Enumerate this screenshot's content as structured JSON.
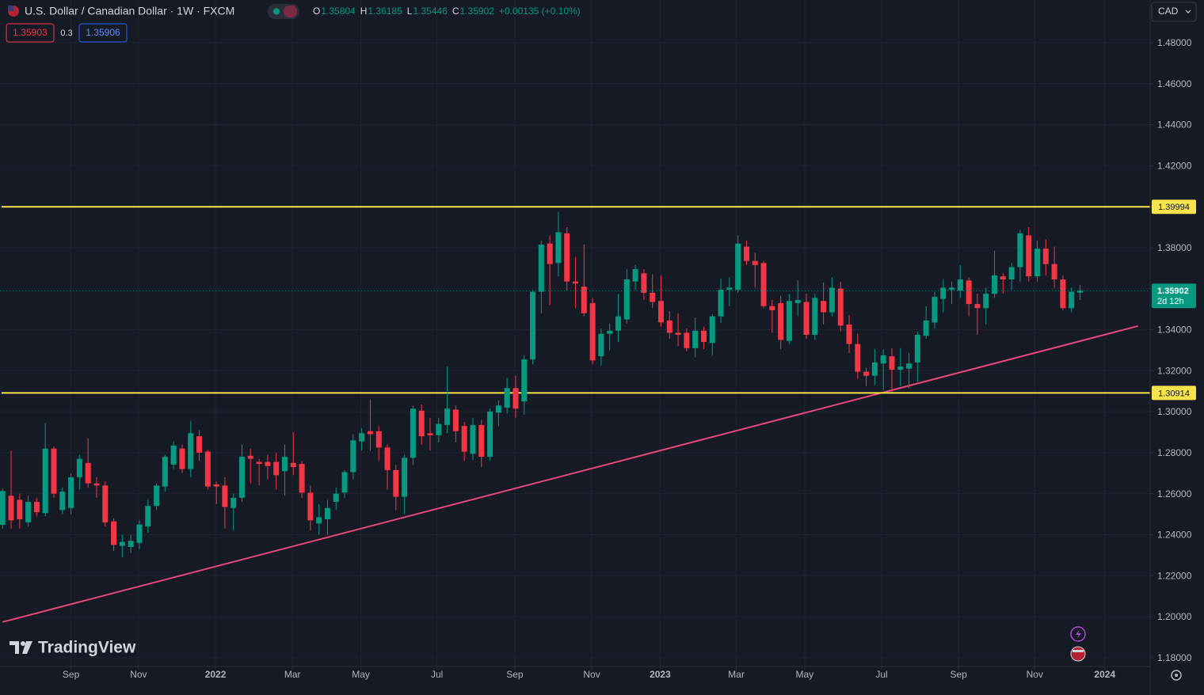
{
  "header": {
    "title": "U.S. Dollar / Canadian Dollar · 1W · FXCM",
    "ohlc": [
      {
        "key": "O",
        "value": "1.35804"
      },
      {
        "key": "H",
        "value": "1.36185"
      },
      {
        "key": "L",
        "value": "1.35446"
      },
      {
        "key": "C",
        "value": "1.35902"
      }
    ],
    "change": "+0.00135 (+0.10%)",
    "sell": "1.35903",
    "spread": "0.3",
    "buy": "1.35906",
    "currency": "CAD",
    "brand": "TradingView"
  },
  "chart_data": {
    "type": "candlestick",
    "open": [
      1.2448,
      1.259,
      1.257,
      1.246,
      1.256,
      1.2505,
      1.282,
      1.252,
      1.253,
      1.268,
      1.275,
      1.265,
      1.264,
      1.2465,
      1.2345,
      1.234,
      1.236,
      1.244,
      1.254,
      1.2635,
      1.2742,
      1.282,
      1.272,
      1.288,
      1.2805,
      1.2645,
      1.264,
      1.253,
      1.258,
      1.2785,
      1.2755,
      1.2755,
      1.2755,
      1.271,
      1.275,
      1.2745,
      1.2605,
      1.2455,
      1.2475,
      1.256,
      1.2605,
      1.2705,
      1.2855,
      1.2905,
      1.2905,
      1.2825,
      1.2715,
      1.2585,
      1.2775,
      1.3005,
      1.2895,
      1.2885,
      1.2935,
      1.301,
      1.293,
      1.2795,
      1.2935,
      1.278,
      1.2995,
      1.302,
      1.3115,
      1.305,
      1.3255,
      1.3585,
      1.382,
      1.3725,
      1.387,
      1.3635,
      1.361,
      1.353,
      1.327,
      1.338,
      1.3395,
      1.345,
      1.3635,
      1.3675,
      1.358,
      1.354,
      1.3445,
      1.3385,
      1.3385,
      1.331,
      1.3395,
      1.3335,
      1.3465,
      1.3595,
      1.3595,
      1.3805,
      1.3735,
      1.3725,
      1.3515,
      1.353,
      1.3345,
      1.353,
      1.3535,
      1.3375,
      1.354,
      1.3485,
      1.36,
      1.3425,
      1.333,
      1.3195,
      1.3175,
      1.3235,
      1.327,
      1.3205,
      1.321,
      1.324,
      1.337,
      1.3435,
      1.355,
      1.3595,
      1.359,
      1.364,
      1.3525,
      1.3505,
      1.3575,
      1.366,
      1.3645,
      1.3705,
      1.386,
      1.366,
      1.3795,
      1.372,
      1.3645,
      1.3505,
      1.35804
    ],
    "high": [
      1.2625,
      1.281,
      1.26,
      1.259,
      1.258,
      1.2945,
      1.283,
      1.263,
      1.27,
      1.279,
      1.287,
      1.268,
      1.266,
      1.248,
      1.24,
      1.24,
      1.247,
      1.257,
      1.265,
      1.279,
      1.2855,
      1.284,
      1.2955,
      1.291,
      1.2815,
      1.266,
      1.268,
      1.26,
      1.284,
      1.282,
      1.277,
      1.279,
      1.28,
      1.284,
      1.29,
      1.276,
      1.264,
      1.255,
      1.257,
      1.263,
      1.2715,
      1.289,
      1.292,
      1.306,
      1.293,
      1.284,
      1.274,
      1.279,
      1.303,
      1.3035,
      1.297,
      1.297,
      1.322,
      1.303,
      1.295,
      1.297,
      1.296,
      1.3015,
      1.3055,
      1.3165,
      1.3175,
      1.3275,
      1.3595,
      1.3835,
      1.386,
      1.3975,
      1.39,
      1.3755,
      1.3815,
      1.3555,
      1.3405,
      1.343,
      1.3575,
      1.3695,
      1.3715,
      1.3695,
      1.367,
      1.3665,
      1.349,
      1.348,
      1.3405,
      1.346,
      1.3415,
      1.3475,
      1.365,
      1.3655,
      1.386,
      1.3835,
      1.3775,
      1.3735,
      1.3545,
      1.3565,
      1.3575,
      1.364,
      1.3575,
      1.3575,
      1.363,
      1.3655,
      1.3635,
      1.347,
      1.338,
      1.3215,
      1.3305,
      1.3305,
      1.331,
      1.331,
      1.3285,
      1.339,
      1.3515,
      1.3585,
      1.3645,
      1.3635,
      1.3715,
      1.3655,
      1.3575,
      1.3605,
      1.3785,
      1.3675,
      1.3725,
      1.3885,
      1.39,
      1.3835,
      1.384,
      1.3805,
      1.3665,
      1.3605,
      1.36185
    ],
    "low": [
      1.243,
      1.243,
      1.243,
      1.244,
      1.249,
      1.249,
      1.258,
      1.25,
      1.25,
      1.262,
      1.263,
      1.258,
      1.244,
      1.232,
      1.229,
      1.231,
      1.233,
      1.241,
      1.252,
      1.261,
      1.272,
      1.27,
      1.268,
      1.276,
      1.262,
      1.255,
      1.243,
      1.242,
      1.256,
      1.265,
      1.264,
      1.267,
      1.262,
      1.259,
      1.269,
      1.258,
      1.242,
      1.24,
      1.24,
      1.252,
      1.258,
      1.267,
      1.281,
      1.281,
      1.276,
      1.262,
      1.252,
      1.25,
      1.274,
      1.284,
      1.281,
      1.285,
      1.2895,
      1.285,
      1.276,
      1.2765,
      1.273,
      1.276,
      1.293,
      1.299,
      1.297,
      1.2985,
      1.323,
      1.348,
      1.352,
      1.366,
      1.359,
      1.3505,
      1.3465,
      1.323,
      1.3225,
      1.33,
      1.334,
      1.343,
      1.3595,
      1.3545,
      1.3505,
      1.3415,
      1.3355,
      1.332,
      1.3295,
      1.3265,
      1.3305,
      1.3275,
      1.3435,
      1.3515,
      1.358,
      1.3715,
      1.3605,
      1.3505,
      1.3385,
      1.3305,
      1.333,
      1.3465,
      1.3355,
      1.335,
      1.3425,
      1.3465,
      1.339,
      1.3285,
      1.316,
      1.3125,
      1.313,
      1.3105,
      1.3095,
      1.3125,
      1.3115,
      1.3145,
      1.3355,
      1.3405,
      1.3485,
      1.3525,
      1.3555,
      1.3465,
      1.3375,
      1.3425,
      1.3555,
      1.3575,
      1.3595,
      1.3635,
      1.3635,
      1.3635,
      1.3665,
      1.3605,
      1.3495,
      1.3485,
      1.35446
    ],
    "close": [
      1.2613,
      1.247,
      1.2475,
      1.256,
      1.251,
      1.282,
      1.26,
      1.261,
      1.268,
      1.277,
      1.265,
      1.264,
      1.246,
      1.235,
      1.2365,
      1.237,
      1.245,
      1.254,
      1.264,
      1.278,
      1.2835,
      1.272,
      1.2895,
      1.28,
      1.2635,
      1.2635,
      1.2535,
      1.258,
      1.278,
      1.277,
      1.2745,
      1.2735,
      1.269,
      1.278,
      1.273,
      1.2605,
      1.247,
      1.2485,
      1.253,
      1.26,
      1.2705,
      1.286,
      1.2895,
      1.289,
      1.2825,
      1.2715,
      1.2585,
      1.2775,
      1.3015,
      1.288,
      1.2885,
      1.294,
      1.3015,
      1.2905,
      1.2805,
      1.2935,
      1.278,
      1.3,
      1.303,
      1.3115,
      1.3015,
      1.3255,
      1.3585,
      1.3815,
      1.372,
      1.3875,
      1.3635,
      1.3625,
      1.348,
      1.325,
      1.338,
      1.3395,
      1.3465,
      1.3645,
      1.3695,
      1.358,
      1.3535,
      1.3435,
      1.3385,
      1.3375,
      1.331,
      1.3395,
      1.334,
      1.3465,
      1.3595,
      1.3605,
      1.382,
      1.3735,
      1.3715,
      1.3515,
      1.3495,
      1.335,
      1.354,
      1.3545,
      1.3375,
      1.3555,
      1.3485,
      1.3605,
      1.342,
      1.333,
      1.3195,
      1.3175,
      1.324,
      1.3275,
      1.3205,
      1.322,
      1.3235,
      1.3375,
      1.3445,
      1.356,
      1.3605,
      1.3605,
      1.3645,
      1.3525,
      1.3505,
      1.3575,
      1.3665,
      1.3645,
      1.3705,
      1.387,
      1.366,
      1.3795,
      1.372,
      1.3645,
      1.3505,
      1.3585,
      1.35902
    ],
    "up_color": "#089981",
    "down_color": "#f23645",
    "xlim": [
      -0.3,
      134.2
    ],
    "xticks": [
      {
        "value": 8.0,
        "label": "Sep"
      },
      {
        "value": 15.9,
        "label": "Nov"
      },
      {
        "value": 24.9,
        "label": "2022"
      },
      {
        "value": 33.9,
        "label": "Mar"
      },
      {
        "value": 41.9,
        "label": "May"
      },
      {
        "value": 50.8,
        "label": "Jul"
      },
      {
        "value": 59.9,
        "label": "Sep"
      },
      {
        "value": 68.9,
        "label": "Nov"
      },
      {
        "value": 76.9,
        "label": "2023"
      },
      {
        "value": 85.8,
        "label": "Mar"
      },
      {
        "value": 93.8,
        "label": "May"
      },
      {
        "value": 102.8,
        "label": "Jul"
      },
      {
        "value": 111.8,
        "label": "Sep"
      },
      {
        "value": 120.7,
        "label": "Nov"
      },
      {
        "value": 128.9,
        "label": "2024"
      }
    ],
    "ylim": [
      1.1757,
      1.5008
    ],
    "yticks": [
      {
        "value": 1.18,
        "label": "1.18000"
      },
      {
        "value": 1.2,
        "label": "1.20000"
      },
      {
        "value": 1.22,
        "label": "1.22000"
      },
      {
        "value": 1.24,
        "label": "1.24000"
      },
      {
        "value": 1.26,
        "label": "1.26000"
      },
      {
        "value": 1.28,
        "label": "1.28000"
      },
      {
        "value": 1.3,
        "label": "1.30000"
      },
      {
        "value": 1.32,
        "label": "1.32000"
      },
      {
        "value": 1.34,
        "label": "1.34000"
      },
      {
        "value": 1.36,
        "label": "1.36000"
      },
      {
        "value": 1.38,
        "label": "1.38000"
      },
      {
        "value": 1.4,
        "label": "1.40000"
      },
      {
        "value": 1.42,
        "label": "1.42000"
      },
      {
        "value": 1.44,
        "label": "1.44000"
      },
      {
        "value": 1.46,
        "label": "1.46000"
      },
      {
        "value": 1.48,
        "label": "1.48000"
      }
    ],
    "grid": true,
    "hlines": [
      {
        "value": 1.39994,
        "label": "1.39994",
        "color": "#f7e34b"
      },
      {
        "value": 1.30914,
        "label": "1.30914",
        "color": "#f7e34b"
      }
    ],
    "trendline": {
      "x": [
        0,
        132.8
      ],
      "y": [
        1.1974,
        1.3418
      ],
      "color": "#e8467c"
    },
    "last_price": {
      "value": 1.35902,
      "label": "1.35902",
      "countdown": "2d 12h"
    }
  }
}
